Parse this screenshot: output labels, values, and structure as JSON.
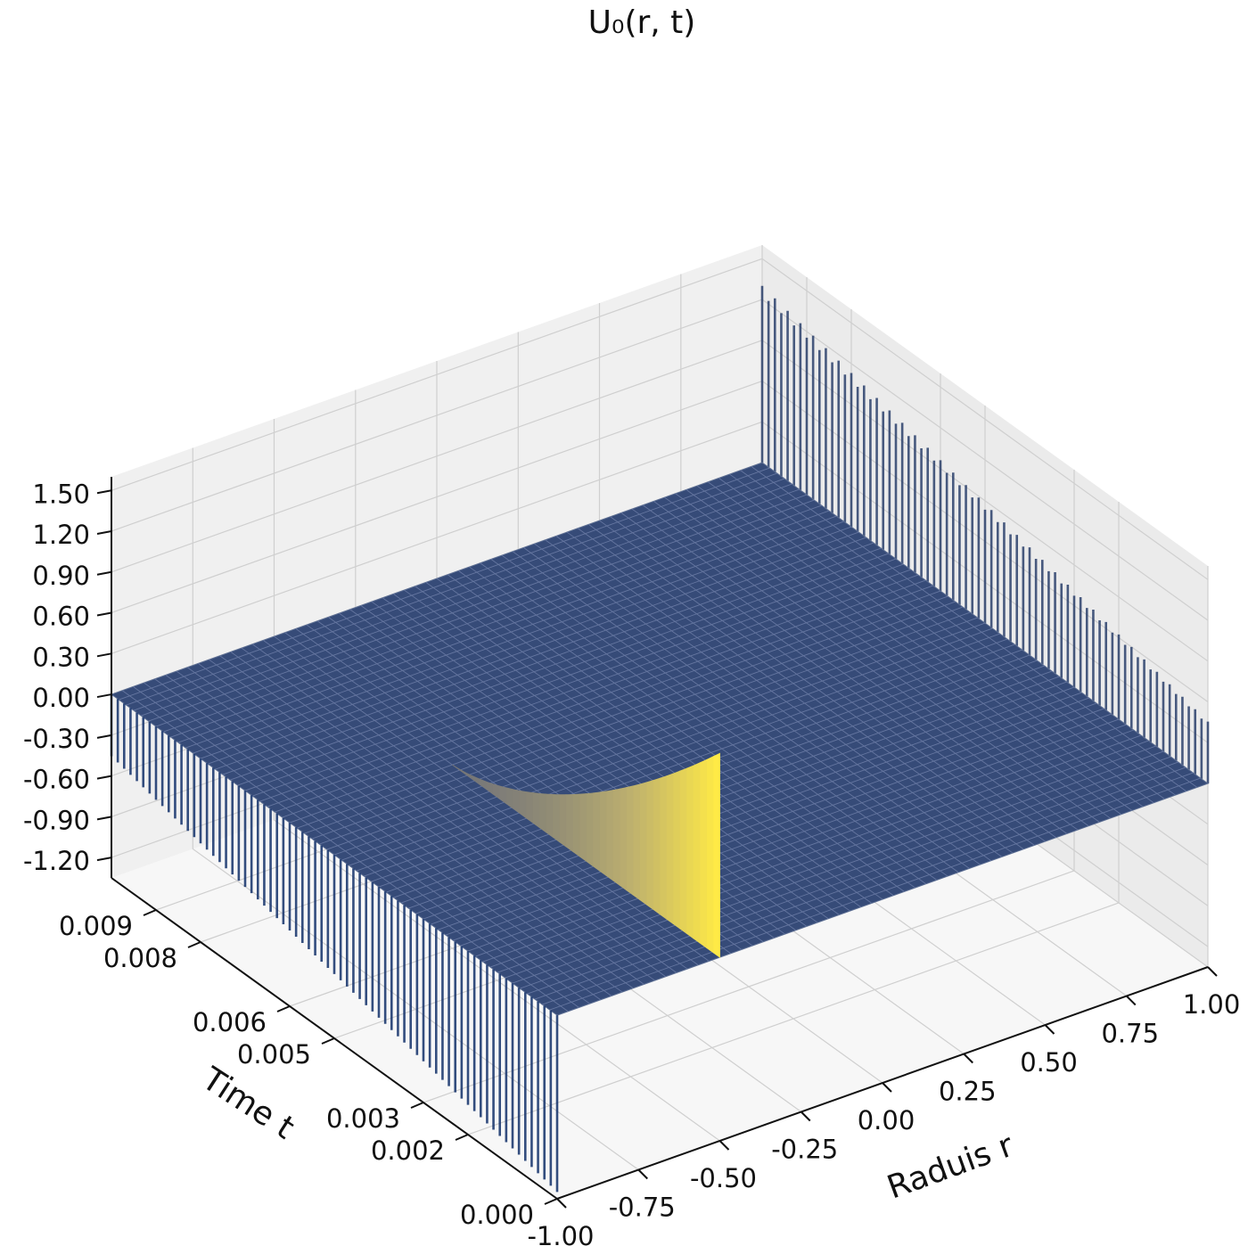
{
  "chart_data": {
    "type": "surface3d",
    "title": "U₀(r, t)",
    "xlabel": "Raduis r",
    "ylabel": "Time t",
    "zlabel": "",
    "x_ticks": [
      "-1.00",
      "-0.75",
      "-0.50",
      "-0.25",
      "0.00",
      "0.25",
      "0.50",
      "0.75",
      "1.00"
    ],
    "y_ticks": [
      "0.000",
      "0.002",
      "0.003",
      "0.005",
      "0.006",
      "0.008",
      "0.009"
    ],
    "z_ticks": [
      "-1.20",
      "-0.90",
      "-0.60",
      "-0.30",
      "0.00",
      "0.30",
      "0.60",
      "0.90",
      "1.20",
      "1.50"
    ],
    "xlim": [
      -1.0,
      1.0
    ],
    "ylim": [
      0.0,
      0.01
    ],
    "zlim": [
      -1.35,
      1.6
    ],
    "grid": true,
    "colormap": "cividis",
    "colors": {
      "low": "#00204c",
      "mid": "#7c7b78",
      "high": "#ffea46",
      "pane": "#f2f2f2",
      "grid": "#cfcfcf"
    },
    "surface": {
      "baseline_value": 0.0,
      "peak": {
        "r": -0.5,
        "t": 0.0,
        "value": 1.5
      },
      "peak_decay_until_t": 0.006,
      "edge_oscillation": {
        "r_edges": [
          -1.0,
          1.0
        ],
        "amplitude": 1.3
      }
    }
  }
}
